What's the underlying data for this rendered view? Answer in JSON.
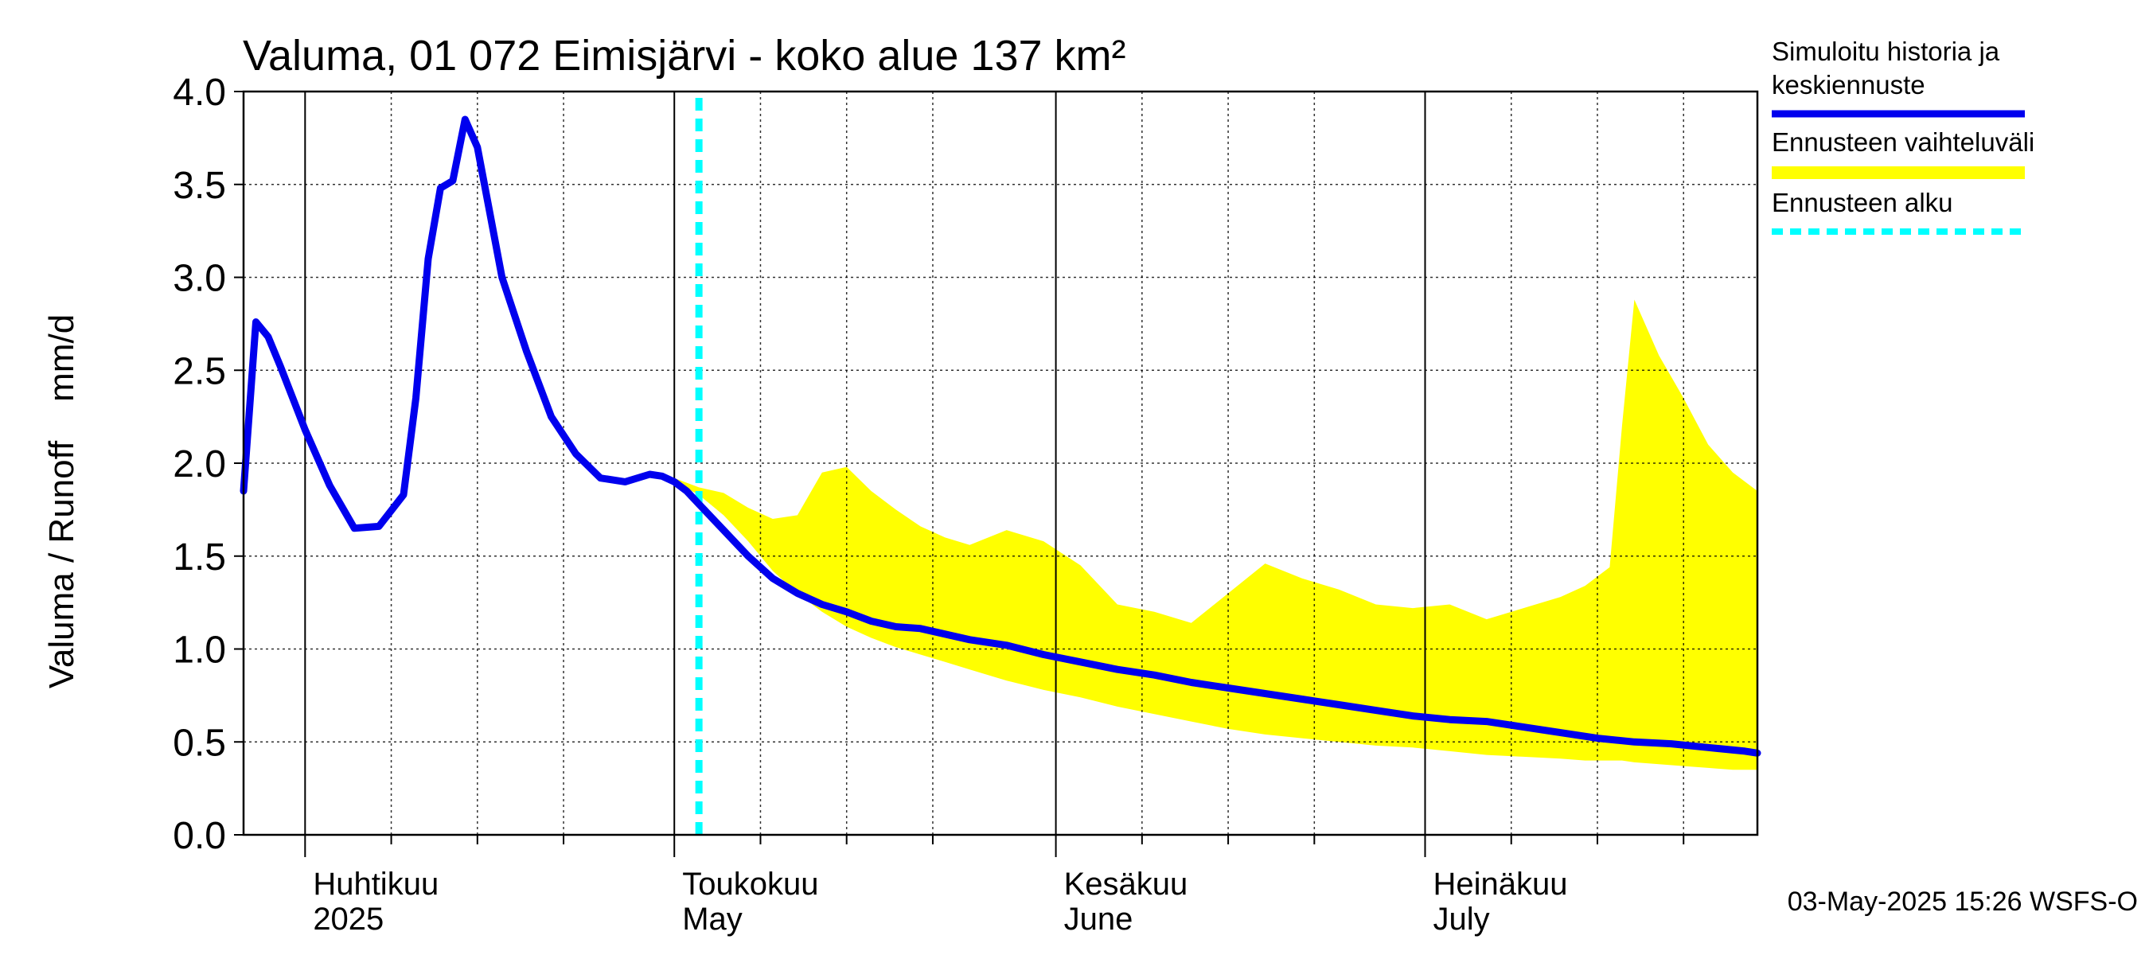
{
  "chart_data": {
    "type": "line",
    "title": "Valuma, 01 072 Eimisjärvi - koko alue 137 km²",
    "ylabel": "Valuma / Runoff    mm/d",
    "ylim": [
      0,
      4
    ],
    "yticks": [
      "0.0",
      "0.5",
      "1.0",
      "1.5",
      "2.0",
      "2.5",
      "3.0",
      "3.5",
      "4.0"
    ],
    "xlim": [
      "2025-03-27",
      "2025-07-28"
    ],
    "months": [
      {
        "date": "2025-04-01",
        "fi": "Huhtikuu",
        "en": "2025"
      },
      {
        "date": "2025-05-01",
        "fi": "Toukokuu",
        "en": "May"
      },
      {
        "date": "2025-06-01",
        "fi": "Kesäkuu",
        "en": "June"
      },
      {
        "date": "2025-07-01",
        "fi": "Heinäkuu",
        "en": "July"
      }
    ],
    "forecast_start": "2025-05-03",
    "grid": true,
    "timestamp": "03-May-2025 15:26 WSFS-O",
    "legend": [
      {
        "label_lines": [
          "Simuloitu historia ja",
          "keskiennuste"
        ],
        "color": "#0000ee",
        "style": "solid"
      },
      {
        "label_lines": [
          "Ennusteen vaihteluväli"
        ],
        "color": "#ffff00",
        "style": "band"
      },
      {
        "label_lines": [
          "Ennusteen alku"
        ],
        "color": "#00ffff",
        "style": "dashed"
      }
    ],
    "series": [
      {
        "name": "Simuloitu historia ja keskiennuste",
        "color": "#0000ee",
        "x": [
          "2025-03-27",
          "2025-03-28",
          "2025-03-29",
          "2025-03-30",
          "2025-04-01",
          "2025-04-03",
          "2025-04-05",
          "2025-04-07",
          "2025-04-09",
          "2025-04-10",
          "2025-04-11",
          "2025-04-12",
          "2025-04-13",
          "2025-04-14",
          "2025-04-15",
          "2025-04-16",
          "2025-04-17",
          "2025-04-19",
          "2025-04-21",
          "2025-04-23",
          "2025-04-25",
          "2025-04-27",
          "2025-04-29",
          "2025-04-30",
          "2025-05-01",
          "2025-05-02",
          "2025-05-03",
          "2025-05-05",
          "2025-05-07",
          "2025-05-09",
          "2025-05-11",
          "2025-05-13",
          "2025-05-15",
          "2025-05-17",
          "2025-05-19",
          "2025-05-21",
          "2025-05-23",
          "2025-05-25",
          "2025-05-28",
          "2025-05-31",
          "2025-06-03",
          "2025-06-06",
          "2025-06-09",
          "2025-06-12",
          "2025-06-15",
          "2025-06-18",
          "2025-06-21",
          "2025-06-24",
          "2025-06-27",
          "2025-06-30",
          "2025-07-03",
          "2025-07-06",
          "2025-07-09",
          "2025-07-12",
          "2025-07-15",
          "2025-07-18",
          "2025-07-21",
          "2025-07-24",
          "2025-07-27",
          "2025-07-28"
        ],
        "values": [
          1.85,
          2.76,
          2.68,
          2.52,
          2.18,
          1.88,
          1.65,
          1.66,
          1.83,
          2.35,
          3.1,
          3.48,
          3.52,
          3.85,
          3.7,
          3.35,
          3.0,
          2.6,
          2.25,
          2.05,
          1.92,
          1.9,
          1.94,
          1.93,
          1.9,
          1.85,
          1.78,
          1.64,
          1.5,
          1.38,
          1.3,
          1.24,
          1.2,
          1.15,
          1.12,
          1.11,
          1.08,
          1.05,
          1.02,
          0.97,
          0.93,
          0.89,
          0.86,
          0.82,
          0.79,
          0.76,
          0.73,
          0.7,
          0.67,
          0.64,
          0.62,
          0.61,
          0.58,
          0.55,
          0.52,
          0.5,
          0.49,
          0.47,
          0.45,
          0.44
        ]
      }
    ],
    "band": {
      "name": "Ennusteen vaihteluväli",
      "color": "#ffff00",
      "x": [
        "2025-05-01",
        "2025-05-03",
        "2025-05-05",
        "2025-05-07",
        "2025-05-09",
        "2025-05-11",
        "2025-05-13",
        "2025-05-15",
        "2025-05-17",
        "2025-05-19",
        "2025-05-21",
        "2025-05-23",
        "2025-05-25",
        "2025-05-28",
        "2025-05-31",
        "2025-06-03",
        "2025-06-06",
        "2025-06-09",
        "2025-06-12",
        "2025-06-15",
        "2025-06-18",
        "2025-06-21",
        "2025-06-24",
        "2025-06-27",
        "2025-06-30",
        "2025-07-03",
        "2025-07-06",
        "2025-07-09",
        "2025-07-12",
        "2025-07-14",
        "2025-07-16",
        "2025-07-17",
        "2025-07-18",
        "2025-07-20",
        "2025-07-22",
        "2025-07-24",
        "2025-07-26",
        "2025-07-28"
      ],
      "upper": [
        1.92,
        1.87,
        1.84,
        1.76,
        1.7,
        1.72,
        1.95,
        1.98,
        1.85,
        1.75,
        1.66,
        1.6,
        1.56,
        1.64,
        1.58,
        1.45,
        1.24,
        1.2,
        1.14,
        1.3,
        1.46,
        1.38,
        1.32,
        1.24,
        1.22,
        1.24,
        1.16,
        1.22,
        1.28,
        1.34,
        1.44,
        2.2,
        2.88,
        2.58,
        2.35,
        2.1,
        1.95,
        1.85
      ],
      "lower": [
        1.9,
        1.83,
        1.72,
        1.58,
        1.42,
        1.3,
        1.2,
        1.12,
        1.06,
        1.01,
        0.97,
        0.93,
        0.89,
        0.83,
        0.78,
        0.74,
        0.69,
        0.65,
        0.61,
        0.57,
        0.54,
        0.52,
        0.5,
        0.48,
        0.47,
        0.45,
        0.43,
        0.42,
        0.41,
        0.4,
        0.4,
        0.4,
        0.39,
        0.38,
        0.37,
        0.36,
        0.35,
        0.35
      ]
    }
  }
}
